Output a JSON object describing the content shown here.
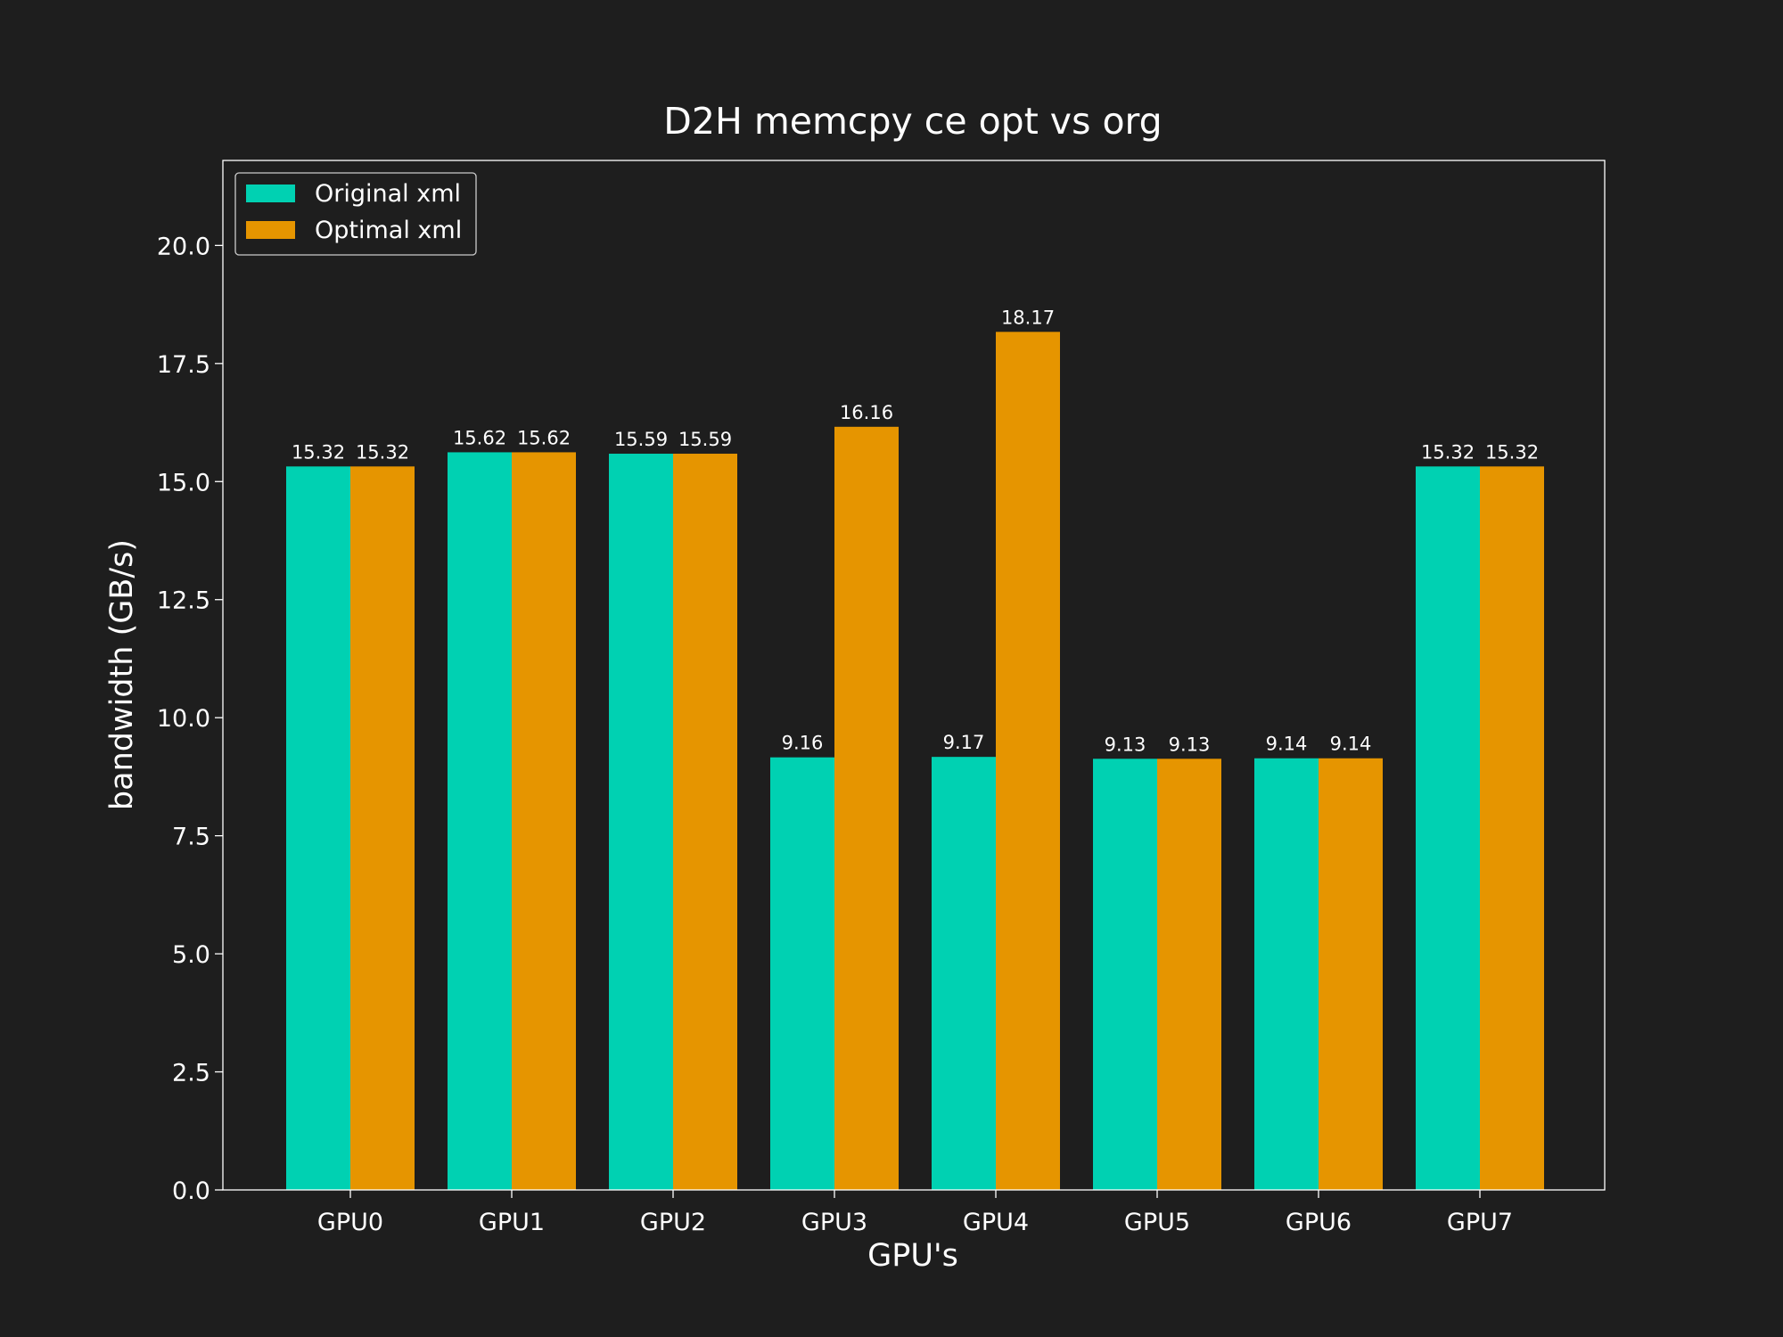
{
  "chart_data": {
    "type": "bar",
    "title": "D2H memcpy ce opt vs org",
    "xlabel": "GPU's",
    "ylabel": "bandwidth (GB/s)",
    "categories": [
      "GPU0",
      "GPU1",
      "GPU2",
      "GPU3",
      "GPU4",
      "GPU5",
      "GPU6",
      "GPU7"
    ],
    "series": [
      {
        "name": "Original xml",
        "color": "#00d1b2",
        "values": [
          15.32,
          15.62,
          15.59,
          9.16,
          9.17,
          9.13,
          9.14,
          15.32
        ],
        "labels": [
          "15.32",
          "15.62",
          "15.59",
          "9.16",
          "9.17",
          "9.13",
          "9.14",
          "15.32"
        ]
      },
      {
        "name": "Optimal xml",
        "color": "#e69500",
        "values": [
          15.32,
          15.62,
          15.59,
          16.16,
          18.17,
          9.13,
          9.14,
          15.32
        ],
        "labels": [
          "15.32",
          "15.62",
          "15.59",
          "16.16",
          "18.17",
          "9.13",
          "9.14",
          "15.32"
        ]
      }
    ],
    "ylim": [
      0,
      21.8
    ],
    "yticks": [
      0.0,
      2.5,
      5.0,
      7.5,
      10.0,
      12.5,
      15.0,
      17.5,
      20.0
    ],
    "ytick_labels": [
      "0.0",
      "2.5",
      "5.0",
      "7.5",
      "10.0",
      "12.5",
      "15.0",
      "17.5",
      "20.0"
    ],
    "grid": false,
    "legend_position": "top-left",
    "background_color": "#1e1e1e",
    "frame_color": "#ffffff"
  }
}
